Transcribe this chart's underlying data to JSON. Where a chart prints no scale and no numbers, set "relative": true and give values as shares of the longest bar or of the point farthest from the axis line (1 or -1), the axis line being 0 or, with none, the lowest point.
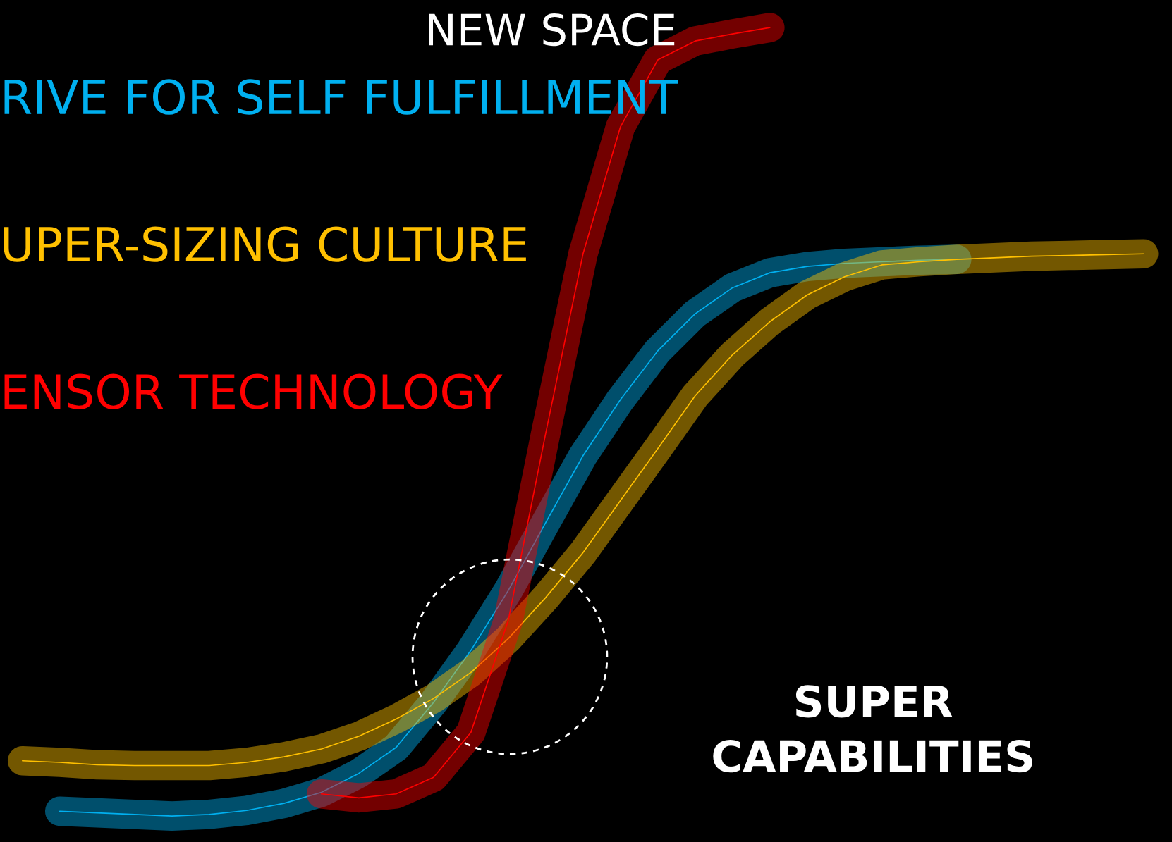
{
  "chart_data": {
    "type": "line",
    "relative": true,
    "categories": [
      null,
      null,
      null,
      null,
      null,
      null,
      null,
      null,
      null,
      null,
      null,
      null,
      null,
      null,
      null,
      null,
      null,
      null,
      null,
      null,
      null,
      null,
      null,
      null,
      null,
      null,
      null,
      null,
      null,
      null,
      null
    ],
    "series": [
      {
        "name": "RIVE FOR SELF FULFILLMENT",
        "color": "#00b0f0",
        "values": [
          null,
          0.006,
          0.004,
          0.002,
          0.0,
          0.002,
          0.007,
          0.016,
          0.03,
          0.054,
          0.087,
          0.144,
          0.21,
          0.286,
          0.372,
          0.457,
          0.528,
          0.59,
          0.637,
          0.67,
          0.689,
          0.697,
          0.701,
          0.703,
          0.705,
          0.706,
          null,
          null,
          null,
          null,
          null
        ]
      },
      {
        "name": "UPER-SIZING CULTURE",
        "color": "#ffc000",
        "values": [
          0.07,
          0.068,
          0.065,
          0.064,
          0.064,
          0.064,
          0.068,
          0.075,
          0.085,
          0.101,
          0.123,
          0.149,
          0.182,
          0.225,
          0.277,
          0.334,
          0.4,
          0.466,
          0.533,
          0.585,
          0.627,
          0.661,
          0.684,
          0.699,
          0.703,
          0.706,
          0.708,
          0.71,
          0.711,
          0.712,
          0.713
        ]
      },
      {
        "name": "ENSOR TECHNOLOGY",
        "color": "#ff0000",
        "values": [
          null,
          null,
          null,
          null,
          null,
          null,
          null,
          null,
          0.028,
          0.023,
          0.028,
          0.049,
          0.106,
          0.248,
          0.485,
          0.713,
          0.874,
          0.959,
          0.983,
          0.992,
          1.0,
          null,
          null,
          null,
          null,
          null,
          null,
          null,
          null,
          null,
          null
        ]
      }
    ],
    "annotations": [
      "NEW SPACE",
      "SUPER\nCAPABILITIES"
    ],
    "legend": false,
    "marker": "none",
    "line_style": "solid"
  }
}
